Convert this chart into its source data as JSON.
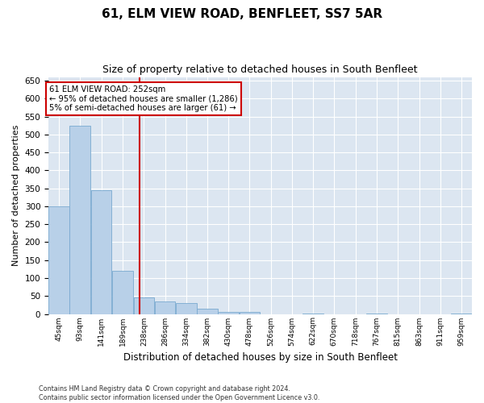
{
  "title": "61, ELM VIEW ROAD, BENFLEET, SS7 5AR",
  "subtitle": "Size of property relative to detached houses in South Benfleet",
  "xlabel": "Distribution of detached houses by size in South Benfleet",
  "ylabel": "Number of detached properties",
  "footnote1": "Contains HM Land Registry data © Crown copyright and database right 2024.",
  "footnote2": "Contains public sector information licensed under the Open Government Licence v3.0.",
  "annotation_line1": "61 ELM VIEW ROAD: 252sqm",
  "annotation_line2": "← 95% of detached houses are smaller (1,286)",
  "annotation_line3": "5% of semi-detached houses are larger (61) →",
  "bar_color": "#b8d0e8",
  "bar_edge_color": "#7aaad0",
  "vline_color": "#cc0000",
  "vline_x": 252,
  "bin_edges": [
    45,
    93,
    141,
    189,
    238,
    286,
    334,
    382,
    430,
    478,
    526,
    574,
    622,
    670,
    718,
    767,
    815,
    863,
    911,
    959,
    1007
  ],
  "bar_heights": [
    300,
    525,
    345,
    120,
    45,
    35,
    30,
    15,
    5,
    5,
    0,
    0,
    1,
    0,
    0,
    1,
    0,
    0,
    0,
    1
  ],
  "ylim": [
    0,
    660
  ],
  "yticks": [
    0,
    50,
    100,
    150,
    200,
    250,
    300,
    350,
    400,
    450,
    500,
    550,
    600,
    650
  ],
  "background_color": "#dce6f1",
  "grid_color": "#ffffff",
  "fig_background": "#ffffff",
  "title_fontsize": 11,
  "subtitle_fontsize": 9,
  "annotation_box_color": "#ffffff",
  "annotation_box_edge": "#cc0000"
}
